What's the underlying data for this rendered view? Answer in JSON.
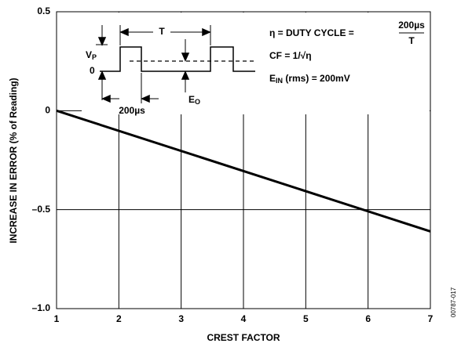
{
  "chart_data": {
    "type": "line",
    "x_label": "CREST FACTOR",
    "y_label": "INCREASE IN ERROR (% of Reading)",
    "x": [
      1,
      7
    ],
    "series": [
      {
        "color": "#000000",
        "values": [
          0,
          -0.61
        ]
      }
    ],
    "xlim": [
      1,
      7
    ],
    "xticks": [
      1,
      2,
      3,
      4,
      5,
      6,
      7
    ],
    "ylim": [
      -1.0,
      0.5
    ],
    "yticks": [
      {
        "value": -1.0,
        "label": "–1.0"
      },
      {
        "value": -0.5,
        "label": "–0.5"
      },
      0,
      0.5
    ],
    "grid": true,
    "annotations": {
      "duty": "η = DUTY CYCLE =",
      "duty_num": "200µs",
      "duty_den": "T",
      "cf": "CF = 1/√η",
      "ein_e": "E",
      "ein_sub": "IN",
      "ein_rest": " (rms) = 200mV",
      "vp_v": "V",
      "vp_sub": "P",
      "zero": "0",
      "period": "T",
      "width": "200µs",
      "eo_e": "E",
      "eo_sub": "O"
    },
    "figure_id": "00787-017"
  }
}
